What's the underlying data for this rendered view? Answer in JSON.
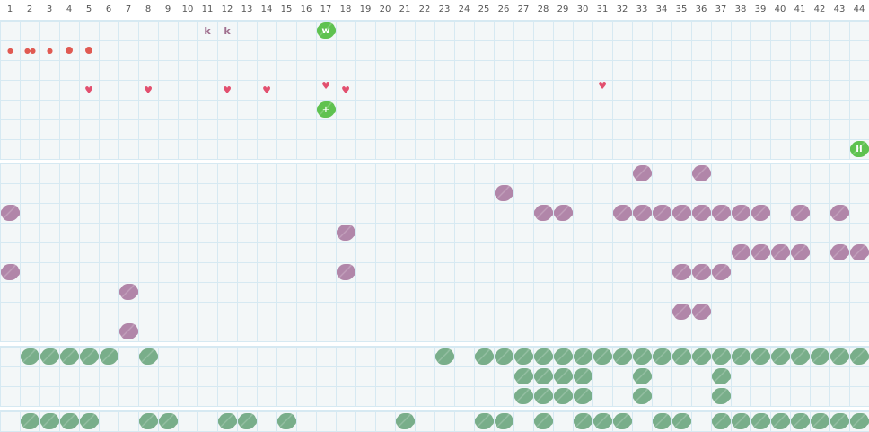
{
  "columns": [
    1,
    2,
    3,
    4,
    5,
    6,
    7,
    8,
    9,
    10,
    11,
    12,
    13,
    14,
    15,
    16,
    17,
    18,
    19,
    20,
    21,
    22,
    23,
    24,
    25,
    26,
    27,
    28,
    29,
    30,
    31,
    32,
    33,
    34,
    35,
    36,
    37,
    38,
    39,
    40,
    41,
    42,
    43,
    44
  ],
  "colors": {
    "grid_bg": "#f3f7f8",
    "grid_line": "#d6e9f2",
    "purple": "#b186a9",
    "dark_green": "#79ae8a",
    "bright_green": "#5fc250",
    "red": "#e05a52",
    "heart": "#e2506f"
  },
  "section1": {
    "items": [
      {
        "row": 1,
        "col": 11,
        "type": "letter",
        "text": "k"
      },
      {
        "row": 1,
        "col": 12,
        "type": "letter",
        "text": "k"
      },
      {
        "row": 1,
        "col": 17,
        "type": "green-badge",
        "text": "w"
      },
      {
        "row": 2,
        "col": 1,
        "type": "drop",
        "text": "💧",
        "icon": "drop-icon",
        "glyph": "⬮"
      },
      {
        "row": 2,
        "col": 2,
        "type": "drop",
        "icon": "double-drop-icon",
        "glyph": "⬮⬮"
      },
      {
        "row": 2,
        "col": 3,
        "type": "drop",
        "icon": "drop-icon",
        "glyph": "⬮"
      },
      {
        "row": 2,
        "col": 4,
        "type": "dot",
        "icon": "dot-icon"
      },
      {
        "row": 2,
        "col": 5,
        "type": "dot",
        "icon": "dot-icon"
      },
      {
        "row": 4,
        "col": 5,
        "type": "heart",
        "icon": "heart-icon"
      },
      {
        "row": 4,
        "col": 8,
        "type": "heart",
        "icon": "heart-icon"
      },
      {
        "row": 4,
        "col": 12,
        "type": "heart",
        "icon": "heart-icon"
      },
      {
        "row": 4,
        "col": 14,
        "type": "heart",
        "icon": "heart-icon"
      },
      {
        "row": 4,
        "col": 17,
        "type": "heart",
        "icon": "heart-icon",
        "raised": true
      },
      {
        "row": 4,
        "col": 18,
        "type": "heart",
        "icon": "heart-icon"
      },
      {
        "row": 4,
        "col": 31,
        "type": "heart",
        "icon": "heart-icon",
        "raised": true
      },
      {
        "row": 5,
        "col": 17,
        "type": "green-badge",
        "text": "+"
      },
      {
        "row": 7,
        "col": 44,
        "type": "green-badge",
        "text": "II"
      }
    ]
  },
  "section2": {
    "rows": [
      [
        33,
        36
      ],
      [
        26
      ],
      [
        1,
        28,
        29,
        32,
        33,
        34,
        35,
        36,
        37,
        38,
        39,
        41,
        43
      ],
      [
        18
      ],
      [
        38,
        39,
        40,
        41,
        43,
        44
      ],
      [
        1,
        18,
        35,
        36,
        37
      ],
      [
        7
      ],
      [
        35,
        36
      ],
      [
        7
      ]
    ]
  },
  "section3": {
    "rows": [
      [
        2,
        3,
        4,
        5,
        6,
        8,
        23,
        25,
        26,
        27,
        28,
        29,
        30,
        31,
        32,
        33,
        34,
        35,
        36,
        37,
        38,
        39,
        40,
        41,
        42,
        43,
        44
      ],
      [
        27,
        28,
        29,
        30,
        33,
        37
      ],
      [
        27,
        28,
        29,
        30,
        33,
        37
      ]
    ]
  },
  "section4": {
    "rows": [
      [
        2,
        3,
        4,
        5,
        8,
        9,
        12,
        13,
        15,
        21,
        25,
        26,
        28,
        30,
        31,
        32,
        34,
        35,
        37,
        38,
        39,
        40,
        41,
        42,
        43,
        44
      ]
    ]
  }
}
